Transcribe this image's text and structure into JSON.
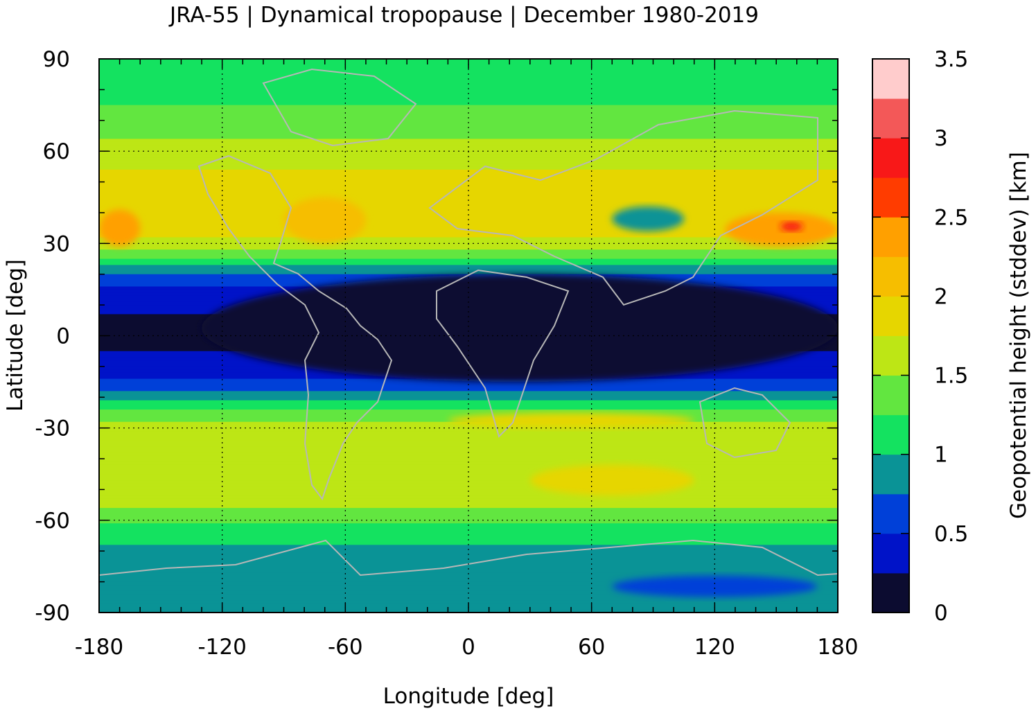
{
  "chart_data": {
    "type": "heatmap",
    "title": "JRA-55 | Dynamical tropopause | December 1980-2019",
    "xlabel": "Longitude [deg]",
    "ylabel": "Latitude [deg]",
    "colorbar_label": "Geopotential height (stddev) [km]",
    "xlim": [
      -180,
      180
    ],
    "ylim": [
      -90,
      90
    ],
    "x_ticks": [
      -180,
      -120,
      -60,
      0,
      60,
      120,
      180
    ],
    "y_ticks": [
      90,
      60,
      30,
      0,
      -30,
      -60,
      -90
    ],
    "x_tick_labels": [
      "-180",
      "-120",
      "-60",
      "0",
      "60",
      "120",
      "180"
    ],
    "y_tick_labels": [
      "90",
      "60",
      "30",
      "0",
      "-30",
      "-60",
      "-90"
    ],
    "grid": true,
    "colorbar": {
      "range": [
        0,
        3.5
      ],
      "ticks": [
        0,
        0.5,
        1,
        1.5,
        2,
        2.5,
        3,
        3.5
      ],
      "tick_labels": [
        "0",
        "0.5",
        "1",
        "1.5",
        "2",
        "2.5",
        "3",
        "3.5"
      ],
      "levels": [
        {
          "from": 0.0,
          "to": 0.25,
          "color": "#0c0c30"
        },
        {
          "from": 0.25,
          "to": 0.5,
          "color": "#0013c8"
        },
        {
          "from": 0.5,
          "to": 0.75,
          "color": "#0040d8"
        },
        {
          "from": 0.75,
          "to": 1.0,
          "color": "#0a9396"
        },
        {
          "from": 1.0,
          "to": 1.25,
          "color": "#14e260"
        },
        {
          "from": 1.25,
          "to": 1.5,
          "color": "#62e640"
        },
        {
          "from": 1.5,
          "to": 1.75,
          "color": "#bde615"
        },
        {
          "from": 1.75,
          "to": 2.0,
          "color": "#e6d600"
        },
        {
          "from": 2.0,
          "to": 2.25,
          "color": "#f6be00"
        },
        {
          "from": 2.25,
          "to": 2.5,
          "color": "#ffa000"
        },
        {
          "from": 2.5,
          "to": 2.75,
          "color": "#ff3c00"
        },
        {
          "from": 2.75,
          "to": 3.0,
          "color": "#f81818"
        },
        {
          "from": 3.0,
          "to": 3.25,
          "color": "#f35858"
        },
        {
          "from": 3.25,
          "to": 3.5,
          "color": "#ffcccc"
        }
      ]
    },
    "zonal_profile": [
      {
        "lat": 90,
        "value": 1.1
      },
      {
        "lat": 80,
        "value": 1.15
      },
      {
        "lat": 70,
        "value": 1.35
      },
      {
        "lat": 60,
        "value": 1.6
      },
      {
        "lat": 50,
        "value": 1.85
      },
      {
        "lat": 40,
        "value": 1.95
      },
      {
        "lat": 30,
        "value": 1.7
      },
      {
        "lat": 25,
        "value": 1.2
      },
      {
        "lat": 20,
        "value": 0.7
      },
      {
        "lat": 15,
        "value": 0.45
      },
      {
        "lat": 10,
        "value": 0.3
      },
      {
        "lat": 5,
        "value": 0.2
      },
      {
        "lat": 0,
        "value": 0.15
      },
      {
        "lat": -5,
        "value": 0.25
      },
      {
        "lat": -10,
        "value": 0.35
      },
      {
        "lat": -15,
        "value": 0.55
      },
      {
        "lat": -20,
        "value": 0.9
      },
      {
        "lat": -25,
        "value": 1.3
      },
      {
        "lat": -30,
        "value": 1.6
      },
      {
        "lat": -40,
        "value": 1.75
      },
      {
        "lat": -50,
        "value": 1.65
      },
      {
        "lat": -55,
        "value": 1.55
      },
      {
        "lat": -60,
        "value": 1.3
      },
      {
        "lat": -65,
        "value": 1.1
      },
      {
        "lat": -70,
        "value": 0.95
      },
      {
        "lat": -80,
        "value": 0.85
      },
      {
        "lat": -90,
        "value": 0.8
      }
    ],
    "features": [
      {
        "name": "north-pacific-max",
        "lon": [
          -180,
          -160
        ],
        "lat": [
          29,
          41
        ],
        "value": 2.3
      },
      {
        "name": "west-pacific-max",
        "lon": [
          125,
          180
        ],
        "lat": [
          29,
          40
        ],
        "value": 2.4
      },
      {
        "name": "west-pacific-peak",
        "lon": [
          152,
          163
        ],
        "lat": [
          34,
          37
        ],
        "value": 2.8
      },
      {
        "name": "atlantic-max",
        "lon": [
          -90,
          -50
        ],
        "lat": [
          30,
          45
        ],
        "value": 2.2
      },
      {
        "name": "tibet-low",
        "lon": [
          70,
          105
        ],
        "lat": [
          34,
          42
        ],
        "value": 0.9
      },
      {
        "name": "tropical-minimum",
        "lon": [
          -130,
          180
        ],
        "lat": [
          -15,
          20
        ],
        "value": 0.1
      },
      {
        "name": "indian-ocean-max",
        "lon": [
          -10,
          110
        ],
        "lat": [
          -30,
          -25
        ],
        "value": 1.9
      },
      {
        "name": "southern-ocean-max",
        "lon": [
          30,
          110
        ],
        "lat": [
          -52,
          -42
        ],
        "value": 1.9
      },
      {
        "name": "antarctic-minimum",
        "lon": [
          70,
          170
        ],
        "lat": [
          -85,
          -78
        ],
        "value": 0.7
      }
    ]
  }
}
